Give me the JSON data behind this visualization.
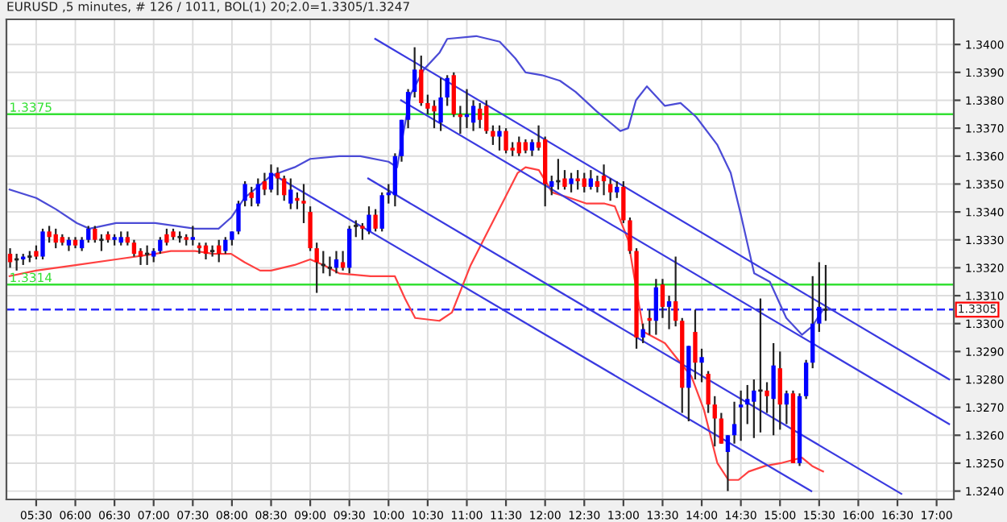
{
  "chart_data": {
    "type": "candlestick",
    "title": "EURUSD ,5 minutes, # 126 / 1011, BOL(1) 20;2.0=1.3305/1.3247",
    "x": [
      5.1667,
      5.25,
      5.3333,
      5.4167,
      5.5,
      5.5833,
      5.6667,
      5.75,
      5.8333,
      5.9167,
      6,
      6.0833,
      6.1667,
      6.25,
      6.3333,
      6.4167,
      6.5,
      6.5833,
      6.6667,
      6.75,
      6.8333,
      6.9167,
      7,
      7.0833,
      7.1667,
      7.25,
      7.3333,
      7.4167,
      7.5,
      7.5833,
      7.6667,
      7.75,
      7.8333,
      7.9167,
      8,
      8.0833,
      8.1667,
      8.25,
      8.3333,
      8.4167,
      8.5,
      8.5833,
      8.6667,
      8.75,
      8.8333,
      8.9167,
      9,
      9.0833,
      9.1667,
      9.25,
      9.3333,
      9.4167,
      9.5,
      9.5833,
      9.6667,
      9.75,
      9.8333,
      9.9167,
      10,
      10.0833,
      10.1667,
      10.25,
      10.3333,
      10.4167,
      10.5,
      10.5833,
      10.6667,
      10.75,
      10.8333,
      10.9167,
      11,
      11.0833,
      11.1667,
      11.25,
      11.3333,
      11.4167,
      11.5,
      11.5833,
      11.6667,
      11.75,
      11.8333,
      11.9167,
      12,
      12.0833,
      12.1667,
      12.25,
      12.3333,
      12.4167,
      12.5,
      12.5833,
      12.6667,
      12.75,
      12.8333,
      12.9167,
      13,
      13.0833,
      13.1667,
      13.25,
      13.3333,
      13.4167,
      13.5,
      13.5833,
      13.6667,
      13.75,
      13.8333,
      13.9167,
      14,
      14.0833,
      14.1667,
      14.25,
      14.3333,
      14.4167,
      14.5,
      14.5833,
      14.6667,
      14.75,
      14.8333,
      14.9167,
      15,
      15.0833,
      15.1667,
      15.25,
      15.3333,
      15.4167,
      15.5,
      15.5833
    ],
    "ohlc": [
      [
        1.3325,
        1.3327,
        1.332,
        1.3322
      ],
      [
        1.3323,
        1.3325,
        1.3319,
        1.3323
      ],
      [
        1.3323,
        1.3325,
        1.3321,
        1.3324
      ],
      [
        1.3324,
        1.3326,
        1.3322,
        1.3324
      ],
      [
        1.3326,
        1.3328,
        1.3323,
        1.3324
      ],
      [
        1.3324,
        1.3334,
        1.3323,
        1.3333
      ],
      [
        1.3333,
        1.3335,
        1.3329,
        1.3331
      ],
      [
        1.3332,
        1.3334,
        1.3327,
        1.3329
      ],
      [
        1.3331,
        1.3332,
        1.3328,
        1.3329
      ],
      [
        1.3328,
        1.3331,
        1.3326,
        1.333
      ],
      [
        1.333,
        1.3331,
        1.3327,
        1.3328
      ],
      [
        1.3327,
        1.3331,
        1.3326,
        1.333
      ],
      [
        1.333,
        1.3335,
        1.3329,
        1.3334
      ],
      [
        1.3334,
        1.3335,
        1.3329,
        1.333
      ],
      [
        1.333,
        1.3332,
        1.3326,
        1.333
      ],
      [
        1.3332,
        1.3333,
        1.3329,
        1.333
      ],
      [
        1.333,
        1.3332,
        1.3328,
        1.3331
      ],
      [
        1.3329,
        1.3333,
        1.3328,
        1.3331
      ],
      [
        1.3331,
        1.3333,
        1.3328,
        1.3329
      ],
      [
        1.3329,
        1.333,
        1.3324,
        1.3325
      ],
      [
        1.3326,
        1.3327,
        1.3321,
        1.3324
      ],
      [
        1.3325,
        1.3328,
        1.3321,
        1.3325
      ],
      [
        1.3324,
        1.3327,
        1.3322,
        1.3326
      ],
      [
        1.3326,
        1.3331,
        1.3325,
        1.333
      ],
      [
        1.3332,
        1.3334,
        1.3328,
        1.3329
      ],
      [
        1.3333,
        1.3334,
        1.333,
        1.3331
      ],
      [
        1.3331,
        1.3333,
        1.3329,
        1.3331
      ],
      [
        1.3331,
        1.3332,
        1.3328,
        1.333
      ],
      [
        1.333,
        1.3335,
        1.3328,
        1.3331
      ],
      [
        1.3328,
        1.3329,
        1.3325,
        1.3327
      ],
      [
        1.3328,
        1.3329,
        1.3323,
        1.3325
      ],
      [
        1.3326,
        1.3328,
        1.3324,
        1.3326
      ],
      [
        1.3328,
        1.333,
        1.3322,
        1.3325
      ],
      [
        1.3326,
        1.3331,
        1.3325,
        1.333
      ],
      [
        1.333,
        1.3333,
        1.3328,
        1.3333
      ],
      [
        1.3333,
        1.3344,
        1.3332,
        1.3343
      ],
      [
        1.3344,
        1.3351,
        1.3342,
        1.335
      ],
      [
        1.3347,
        1.3349,
        1.3342,
        1.3345
      ],
      [
        1.3343,
        1.3352,
        1.3342,
        1.335
      ],
      [
        1.3351,
        1.3354,
        1.3346,
        1.3348
      ],
      [
        1.3348,
        1.3357,
        1.3347,
        1.3354
      ],
      [
        1.3354,
        1.3356,
        1.3346,
        1.3352
      ],
      [
        1.3352,
        1.3353,
        1.3344,
        1.3346
      ],
      [
        1.3343,
        1.3352,
        1.3341,
        1.3348
      ],
      [
        1.3345,
        1.3347,
        1.3341,
        1.3344
      ],
      [
        1.3344,
        1.335,
        1.3336,
        1.3343
      ],
      [
        1.334,
        1.3342,
        1.3326,
        1.3327
      ],
      [
        1.3327,
        1.3329,
        1.3311,
        1.3322
      ],
      [
        1.3321,
        1.3326,
        1.3318,
        1.3321
      ],
      [
        1.332,
        1.3324,
        1.3317,
        1.332
      ],
      [
        1.332,
        1.3326,
        1.3318,
        1.3323
      ],
      [
        1.3322,
        1.3326,
        1.3319,
        1.332
      ],
      [
        1.332,
        1.3335,
        1.3318,
        1.3334
      ],
      [
        1.3335,
        1.3337,
        1.3331,
        1.3335
      ],
      [
        1.3335,
        1.3336,
        1.333,
        1.3334
      ],
      [
        1.3333,
        1.3342,
        1.3332,
        1.3339
      ],
      [
        1.3339,
        1.3341,
        1.3333,
        1.3334
      ],
      [
        1.3334,
        1.3347,
        1.3333,
        1.3346
      ],
      [
        1.3346,
        1.335,
        1.3343,
        1.3347
      ],
      [
        1.3346,
        1.3361,
        1.3342,
        1.336
      ],
      [
        1.336,
        1.3373,
        1.3358,
        1.3373
      ],
      [
        1.3373,
        1.3384,
        1.337,
        1.3383
      ],
      [
        1.3383,
        1.3399,
        1.3381,
        1.3391
      ],
      [
        1.3391,
        1.3396,
        1.3378,
        1.3379
      ],
      [
        1.3379,
        1.3382,
        1.3375,
        1.3377
      ],
      [
        1.3378,
        1.338,
        1.337,
        1.3376
      ],
      [
        1.3372,
        1.3388,
        1.3369,
        1.3381
      ],
      [
        1.3381,
        1.3389,
        1.3378,
        1.3388
      ],
      [
        1.3389,
        1.339,
        1.3374,
        1.3375
      ],
      [
        1.3375,
        1.3378,
        1.3368,
        1.3374
      ],
      [
        1.3374,
        1.3384,
        1.337,
        1.3375
      ],
      [
        1.3372,
        1.338,
        1.3369,
        1.3378
      ],
      [
        1.3377,
        1.3379,
        1.337,
        1.3373
      ],
      [
        1.3378,
        1.338,
        1.3368,
        1.3369
      ],
      [
        1.3369,
        1.3371,
        1.3364,
        1.3367
      ],
      [
        1.3367,
        1.3371,
        1.3362,
        1.3369
      ],
      [
        1.3369,
        1.337,
        1.3361,
        1.3362
      ],
      [
        1.3363,
        1.3365,
        1.336,
        1.3362
      ],
      [
        1.3365,
        1.3367,
        1.336,
        1.3361
      ],
      [
        1.3365,
        1.3366,
        1.3361,
        1.3362
      ],
      [
        1.3362,
        1.3366,
        1.336,
        1.3365
      ],
      [
        1.3365,
        1.3371,
        1.3362,
        1.3363
      ],
      [
        1.3366,
        1.3367,
        1.3342,
        1.335
      ],
      [
        1.3349,
        1.3353,
        1.3346,
        1.3351
      ],
      [
        1.3351,
        1.3359,
        1.3348,
        1.3351
      ],
      [
        1.3352,
        1.3355,
        1.3348,
        1.3349
      ],
      [
        1.335,
        1.3354,
        1.3347,
        1.3352
      ],
      [
        1.3352,
        1.3355,
        1.3348,
        1.3351
      ],
      [
        1.3352,
        1.3354,
        1.3347,
        1.3349
      ],
      [
        1.3349,
        1.3355,
        1.3348,
        1.3352
      ],
      [
        1.3351,
        1.3353,
        1.3347,
        1.3349
      ],
      [
        1.3353,
        1.3357,
        1.3346,
        1.3351
      ],
      [
        1.335,
        1.3352,
        1.3344,
        1.3347
      ],
      [
        1.3347,
        1.3351,
        1.3345,
        1.3349
      ],
      [
        1.3349,
        1.3351,
        1.3336,
        1.3337
      ],
      [
        1.3337,
        1.3338,
        1.3325,
        1.3326
      ],
      [
        1.3326,
        1.3327,
        1.3291,
        1.3295
      ],
      [
        1.3295,
        1.33,
        1.3293,
        1.3298
      ],
      [
        1.3302,
        1.3305,
        1.3296,
        1.3301
      ],
      [
        1.3301,
        1.3316,
        1.3296,
        1.3313
      ],
      [
        1.3314,
        1.3316,
        1.3302,
        1.3306
      ],
      [
        1.3306,
        1.331,
        1.3298,
        1.3308
      ],
      [
        1.3308,
        1.3324,
        1.3299,
        1.3301
      ],
      [
        1.3301,
        1.3302,
        1.3268,
        1.3277
      ],
      [
        1.3277,
        1.3292,
        1.3265,
        1.3292
      ],
      [
        1.3297,
        1.3305,
        1.328,
        1.3286
      ],
      [
        1.3286,
        1.3291,
        1.3279,
        1.3288
      ],
      [
        1.3282,
        1.3283,
        1.3268,
        1.3271
      ],
      [
        1.3271,
        1.3274,
        1.3256,
        1.3266
      ],
      [
        1.3266,
        1.3268,
        1.3257,
        1.3257
      ],
      [
        1.3254,
        1.326,
        1.324,
        1.326
      ],
      [
        1.326,
        1.3272,
        1.3257,
        1.3264
      ],
      [
        1.327,
        1.3276,
        1.3258,
        1.3271
      ],
      [
        1.3271,
        1.3278,
        1.3264,
        1.3273
      ],
      [
        1.3272,
        1.328,
        1.3259,
        1.3276
      ],
      [
        1.3276,
        1.3309,
        1.3261,
        1.3276
      ],
      [
        1.3276,
        1.3279,
        1.3268,
        1.3274
      ],
      [
        1.3273,
        1.3293,
        1.326,
        1.3285
      ],
      [
        1.3284,
        1.329,
        1.3262,
        1.3271
      ],
      [
        1.3271,
        1.3276,
        1.3264,
        1.3275
      ],
      [
        1.3275,
        1.3276,
        1.325,
        1.325
      ],
      [
        1.325,
        1.3275,
        1.3249,
        1.3274
      ],
      [
        1.3274,
        1.3287,
        1.3273,
        1.3286
      ],
      [
        1.3286,
        1.3317,
        1.3284,
        1.33
      ],
      [
        1.33,
        1.3322,
        1.3297,
        1.3306
      ],
      [
        1.3305,
        1.3321,
        1.3301,
        1.3305
      ]
    ],
    "colors": [
      "#ff0000",
      "#222222",
      "#0000ff",
      "#222222",
      "#ff0000",
      "#0000ff",
      "#ff0000",
      "#ff0000",
      "#ff0000",
      "#0000ff",
      "#ff0000",
      "#0000ff",
      "#0000ff",
      "#ff0000",
      "#222222",
      "#ff0000",
      "#0000ff",
      "#0000ff",
      "#ff0000",
      "#ff0000",
      "#ff0000",
      "#222222",
      "#0000ff",
      "#0000ff",
      "#ff0000",
      "#ff0000",
      "#222222",
      "#ff0000",
      "#0000ff",
      "#ff0000",
      "#ff0000",
      "#222222",
      "#ff0000",
      "#0000ff",
      "#0000ff",
      "#0000ff",
      "#0000ff",
      "#ff0000",
      "#0000ff",
      "#ff0000",
      "#0000ff",
      "#ff0000",
      "#ff0000",
      "#0000ff",
      "#ff0000",
      "#ff0000",
      "#ff0000",
      "#ff0000",
      "#222222",
      "#222222",
      "#0000ff",
      "#ff0000",
      "#0000ff",
      "#222222",
      "#ff0000",
      "#0000ff",
      "#ff0000",
      "#0000ff",
      "#0000ff",
      "#0000ff",
      "#0000ff",
      "#0000ff",
      "#0000ff",
      "#ff0000",
      "#ff0000",
      "#ff0000",
      "#0000ff",
      "#0000ff",
      "#ff0000",
      "#ff0000",
      "#0000ff",
      "#0000ff",
      "#ff0000",
      "#ff0000",
      "#ff0000",
      "#0000ff",
      "#ff0000",
      "#ff0000",
      "#ff0000",
      "#ff0000",
      "#0000ff",
      "#ff0000",
      "#ff0000",
      "#0000ff",
      "#222222",
      "#ff0000",
      "#0000ff",
      "#ff0000",
      "#ff0000",
      "#0000ff",
      "#ff0000",
      "#ff0000",
      "#ff0000",
      "#0000ff",
      "#ff0000",
      "#ff0000",
      "#ff0000",
      "#0000ff",
      "#ff0000",
      "#0000ff",
      "#ff0000",
      "#0000ff",
      "#ff0000",
      "#ff0000",
      "#0000ff",
      "#ff0000",
      "#0000ff",
      "#ff0000",
      "#ff0000",
      "#ff0000",
      "#0000ff",
      "#0000ff",
      "#0000ff",
      "#0000ff",
      "#0000ff",
      "#222222",
      "#ff0000",
      "#0000ff",
      "#ff0000",
      "#0000ff",
      "#ff0000",
      "#0000ff",
      "#0000ff",
      "#0000ff",
      "#0000ff",
      "#222222"
    ],
    "series": [
      {
        "type": "line",
        "color": "#4b4bd6",
        "x": [
          5.16,
          5.5,
          5.75,
          6.02,
          6.18,
          6.52,
          7.02,
          7.53,
          7.83,
          7.99,
          8.16,
          8.5,
          8.8,
          9.0,
          9.37,
          9.64,
          10.0,
          10.11,
          10.18,
          10.28,
          10.45,
          10.65,
          10.75,
          11.12,
          11.42,
          11.62,
          11.75,
          11.96,
          12.19,
          12.39,
          12.66,
          12.96,
          13.06,
          13.16,
          13.3,
          13.53,
          13.73,
          13.93,
          14.2,
          14.37,
          14.5,
          14.67,
          14.87,
          15.08,
          15.28,
          15.41,
          15.55
        ],
        "values": [
          1.3348,
          1.3345,
          1.3341,
          1.3336,
          1.3334,
          1.3336,
          1.3336,
          1.3334,
          1.3334,
          1.3338,
          1.3345,
          1.3353,
          1.3356,
          1.3359,
          1.336,
          1.336,
          1.3358,
          1.3356,
          1.3367,
          1.3382,
          1.3391,
          1.3397,
          1.3402,
          1.3403,
          1.3401,
          1.3395,
          1.339,
          1.3389,
          1.3387,
          1.3383,
          1.3376,
          1.3369,
          1.337,
          1.338,
          1.3385,
          1.3378,
          1.3379,
          1.3374,
          1.3364,
          1.3354,
          1.3339,
          1.3318,
          1.3315,
          1.3302,
          1.3296,
          1.3299,
          1.3305
        ]
      },
      {
        "type": "line",
        "color": "#ff4040",
        "x": [
          5.16,
          5.5,
          6.02,
          6.52,
          7.02,
          7.22,
          7.53,
          7.76,
          7.99,
          8.16,
          8.36,
          8.5,
          8.8,
          9.0,
          9.17,
          9.37,
          9.77,
          10.08,
          10.21,
          10.34,
          10.65,
          10.81,
          11.05,
          11.25,
          11.45,
          11.65,
          11.75,
          11.92,
          12.09,
          12.32,
          12.53,
          12.76,
          12.89,
          13.06,
          13.16,
          13.26,
          13.53,
          13.67,
          13.87,
          14.03,
          14.2,
          14.34,
          14.47,
          14.6,
          14.81,
          15.01,
          15.28,
          15.41,
          15.55
        ],
        "values": [
          1.3317,
          1.3319,
          1.3321,
          1.3323,
          1.3325,
          1.3326,
          1.3326,
          1.3325,
          1.3325,
          1.3322,
          1.3319,
          1.3319,
          1.3321,
          1.3323,
          1.3321,
          1.3318,
          1.3317,
          1.3317,
          1.3309,
          1.3302,
          1.3301,
          1.3304,
          1.3321,
          1.3332,
          1.3343,
          1.3354,
          1.3356,
          1.3355,
          1.3347,
          1.3345,
          1.3343,
          1.3343,
          1.3342,
          1.333,
          1.3313,
          1.3297,
          1.3293,
          1.3288,
          1.3281,
          1.3269,
          1.325,
          1.3244,
          1.3244,
          1.3247,
          1.3249,
          1.325,
          1.3252,
          1.3249,
          1.3247
        ]
      },
      {
        "type": "line",
        "color": "#3a3ae0",
        "x": [
          9.83,
          17.16
        ],
        "values": [
          1.3402,
          1.328
        ]
      },
      {
        "type": "line",
        "color": "#3a3ae0",
        "x": [
          10.16,
          17.16
        ],
        "values": [
          1.338,
          1.3264
        ]
      },
      {
        "type": "line",
        "color": "#3a3ae0",
        "x": [
          9.74,
          16.55
        ],
        "values": [
          1.3352,
          1.3239
        ]
      },
      {
        "type": "line",
        "color": "#3a3ae0",
        "x": [
          8.55,
          15.4
        ],
        "values": [
          1.3353,
          1.324
        ]
      }
    ],
    "ref_lines": [
      {
        "axis": "y",
        "value": 1.3375,
        "label": "1.3375",
        "color": "#33e033",
        "line_style": "solid"
      },
      {
        "axis": "y",
        "value": 1.3314,
        "label": "1.3314",
        "color": "#33e033",
        "line_style": "solid"
      },
      {
        "axis": "y",
        "value": 1.3305,
        "label": "1.3305",
        "color": "#2a2aff",
        "line_style": "dashed"
      }
    ],
    "xlim": [
      5.12,
      17.22
    ],
    "ylim": [
      1.3237,
      1.3409
    ],
    "xticks": [
      {
        "value": 5.5,
        "label": "05:30"
      },
      {
        "value": 6,
        "label": "06:00"
      },
      {
        "value": 6.5,
        "label": "06:30"
      },
      {
        "value": 7,
        "label": "07:00"
      },
      {
        "value": 7.5,
        "label": "07:30"
      },
      {
        "value": 8,
        "label": "08:00"
      },
      {
        "value": 8.5,
        "label": "08:30"
      },
      {
        "value": 9,
        "label": "09:00"
      },
      {
        "value": 9.5,
        "label": "09:30"
      },
      {
        "value": 10,
        "label": "10:00"
      },
      {
        "value": 10.5,
        "label": "10:30"
      },
      {
        "value": 11,
        "label": "11:00"
      },
      {
        "value": 11.5,
        "label": "11:30"
      },
      {
        "value": 12,
        "label": "12:00"
      },
      {
        "value": 12.5,
        "label": "12:30"
      },
      {
        "value": 13,
        "label": "13:00"
      },
      {
        "value": 13.5,
        "label": "13:30"
      },
      {
        "value": 14,
        "label": "14:00"
      },
      {
        "value": 14.5,
        "label": "14:30"
      },
      {
        "value": 15,
        "label": "15:00"
      },
      {
        "value": 15.5,
        "label": "15:30"
      },
      {
        "value": 16,
        "label": "16:00"
      },
      {
        "value": 16.5,
        "label": "16:30"
      },
      {
        "value": 17,
        "label": "17:00"
      }
    ],
    "yticks": [
      {
        "value": 1.324,
        "label": "1.3240"
      },
      {
        "value": 1.325,
        "label": "1.3250"
      },
      {
        "value": 1.326,
        "label": "1.3260"
      },
      {
        "value": 1.327,
        "label": "1.3270"
      },
      {
        "value": 1.328,
        "label": "1.3280"
      },
      {
        "value": 1.329,
        "label": "1.3290"
      },
      {
        "value": 1.33,
        "label": "1.3300"
      },
      {
        "value": 1.331,
        "label": "1.3310"
      },
      {
        "value": 1.332,
        "label": "1.3320"
      },
      {
        "value": 1.333,
        "label": "1.3330"
      },
      {
        "value": 1.334,
        "label": "1.3340"
      },
      {
        "value": 1.335,
        "label": "1.3350"
      },
      {
        "value": 1.336,
        "label": "1.3360"
      },
      {
        "value": 1.337,
        "label": "1.3370"
      },
      {
        "value": 1.338,
        "label": "1.3380"
      },
      {
        "value": 1.339,
        "label": "1.3390"
      },
      {
        "value": 1.34,
        "label": "1.3400"
      }
    ],
    "grid": true
  }
}
